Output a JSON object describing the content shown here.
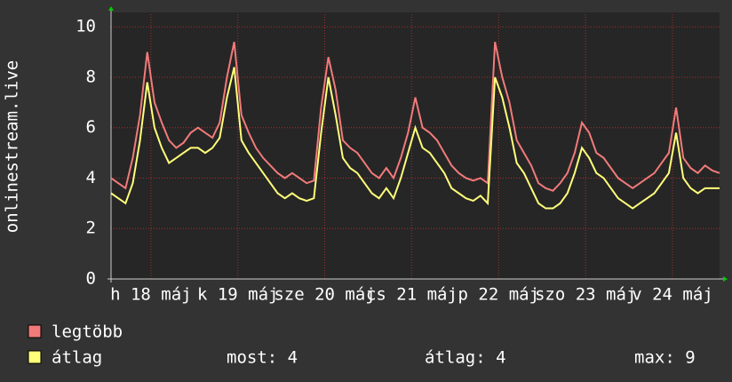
{
  "chart_data": {
    "type": "line",
    "ylabel": "onlinestream.live",
    "x": [
      0,
      2,
      4,
      6,
      8,
      10,
      12,
      14,
      16,
      18,
      20,
      22,
      24,
      26,
      28,
      30,
      32,
      34,
      36,
      38,
      40,
      42,
      44,
      46,
      48,
      50,
      52,
      54,
      56,
      58,
      60,
      62,
      64,
      66,
      68,
      70,
      72,
      74,
      76,
      78,
      80,
      82,
      84,
      86,
      88,
      90,
      92,
      94,
      96,
      98,
      100,
      102,
      104,
      106,
      108,
      110,
      112,
      114,
      116,
      118,
      120,
      122,
      124,
      126,
      128,
      130,
      132,
      134,
      136,
      138,
      140,
      142,
      144,
      146,
      148,
      150,
      152,
      154,
      156,
      158,
      160,
      162,
      164,
      166,
      168
    ],
    "xlim": [
      0,
      168
    ],
    "xticks": [
      {
        "value": 11,
        "label": "h 18 máj"
      },
      {
        "value": 35,
        "label": "k 19 máj"
      },
      {
        "value": 59,
        "label": "sze 20 máj"
      },
      {
        "value": 83,
        "label": "cs 21 máj"
      },
      {
        "value": 107,
        "label": "p 22 máj"
      },
      {
        "value": 131,
        "label": "szo 23 máj"
      },
      {
        "value": 155,
        "label": "v 24 máj"
      }
    ],
    "ylim": [
      0,
      10.5
    ],
    "yticks": [
      0,
      2,
      4,
      6,
      8,
      10
    ],
    "grid": true,
    "series": [
      {
        "name": "legtöbb",
        "color": "#f27a7a",
        "values": [
          4.0,
          3.8,
          3.6,
          4.8,
          6.5,
          9.0,
          7.0,
          6.2,
          5.5,
          5.2,
          5.4,
          5.8,
          6.0,
          5.8,
          5.6,
          6.2,
          8.0,
          9.4,
          6.5,
          5.8,
          5.2,
          4.8,
          4.5,
          4.2,
          4.0,
          4.2,
          4.0,
          3.8,
          3.9,
          6.8,
          8.8,
          7.5,
          5.5,
          5.2,
          5.0,
          4.6,
          4.2,
          4.0,
          4.4,
          4.0,
          4.8,
          5.8,
          7.2,
          6.0,
          5.8,
          5.5,
          5.0,
          4.5,
          4.2,
          4.0,
          3.9,
          4.0,
          3.8,
          9.4,
          8.0,
          7.0,
          5.5,
          5.0,
          4.5,
          3.8,
          3.6,
          3.5,
          3.8,
          4.2,
          5.0,
          6.2,
          5.8,
          5.0,
          4.8,
          4.4,
          4.0,
          3.8,
          3.6,
          3.8,
          4.0,
          4.2,
          4.6,
          5.0,
          6.8,
          4.8,
          4.4,
          4.2,
          4.5,
          4.3,
          4.2
        ]
      },
      {
        "name": "átlag",
        "color": "#ffff7a",
        "values": [
          3.4,
          3.2,
          3.0,
          3.8,
          5.5,
          7.8,
          6.0,
          5.2,
          4.6,
          4.8,
          5.0,
          5.2,
          5.2,
          5.0,
          5.2,
          5.6,
          7.2,
          8.4,
          5.5,
          5.0,
          4.6,
          4.2,
          3.8,
          3.4,
          3.2,
          3.4,
          3.2,
          3.1,
          3.2,
          5.8,
          8.0,
          6.5,
          4.8,
          4.4,
          4.2,
          3.8,
          3.4,
          3.2,
          3.6,
          3.2,
          4.0,
          5.0,
          6.0,
          5.2,
          5.0,
          4.6,
          4.2,
          3.6,
          3.4,
          3.2,
          3.1,
          3.3,
          3.0,
          8.0,
          7.2,
          6.0,
          4.6,
          4.2,
          3.6,
          3.0,
          2.8,
          2.8,
          3.0,
          3.4,
          4.2,
          5.2,
          4.8,
          4.2,
          4.0,
          3.6,
          3.2,
          3.0,
          2.8,
          3.0,
          3.2,
          3.4,
          3.8,
          4.2,
          5.8,
          4.0,
          3.6,
          3.4,
          3.6,
          3.6,
          3.6
        ]
      }
    ],
    "stats": [
      "most: 4",
      "átlag: 4",
      "max: 9"
    ]
  }
}
